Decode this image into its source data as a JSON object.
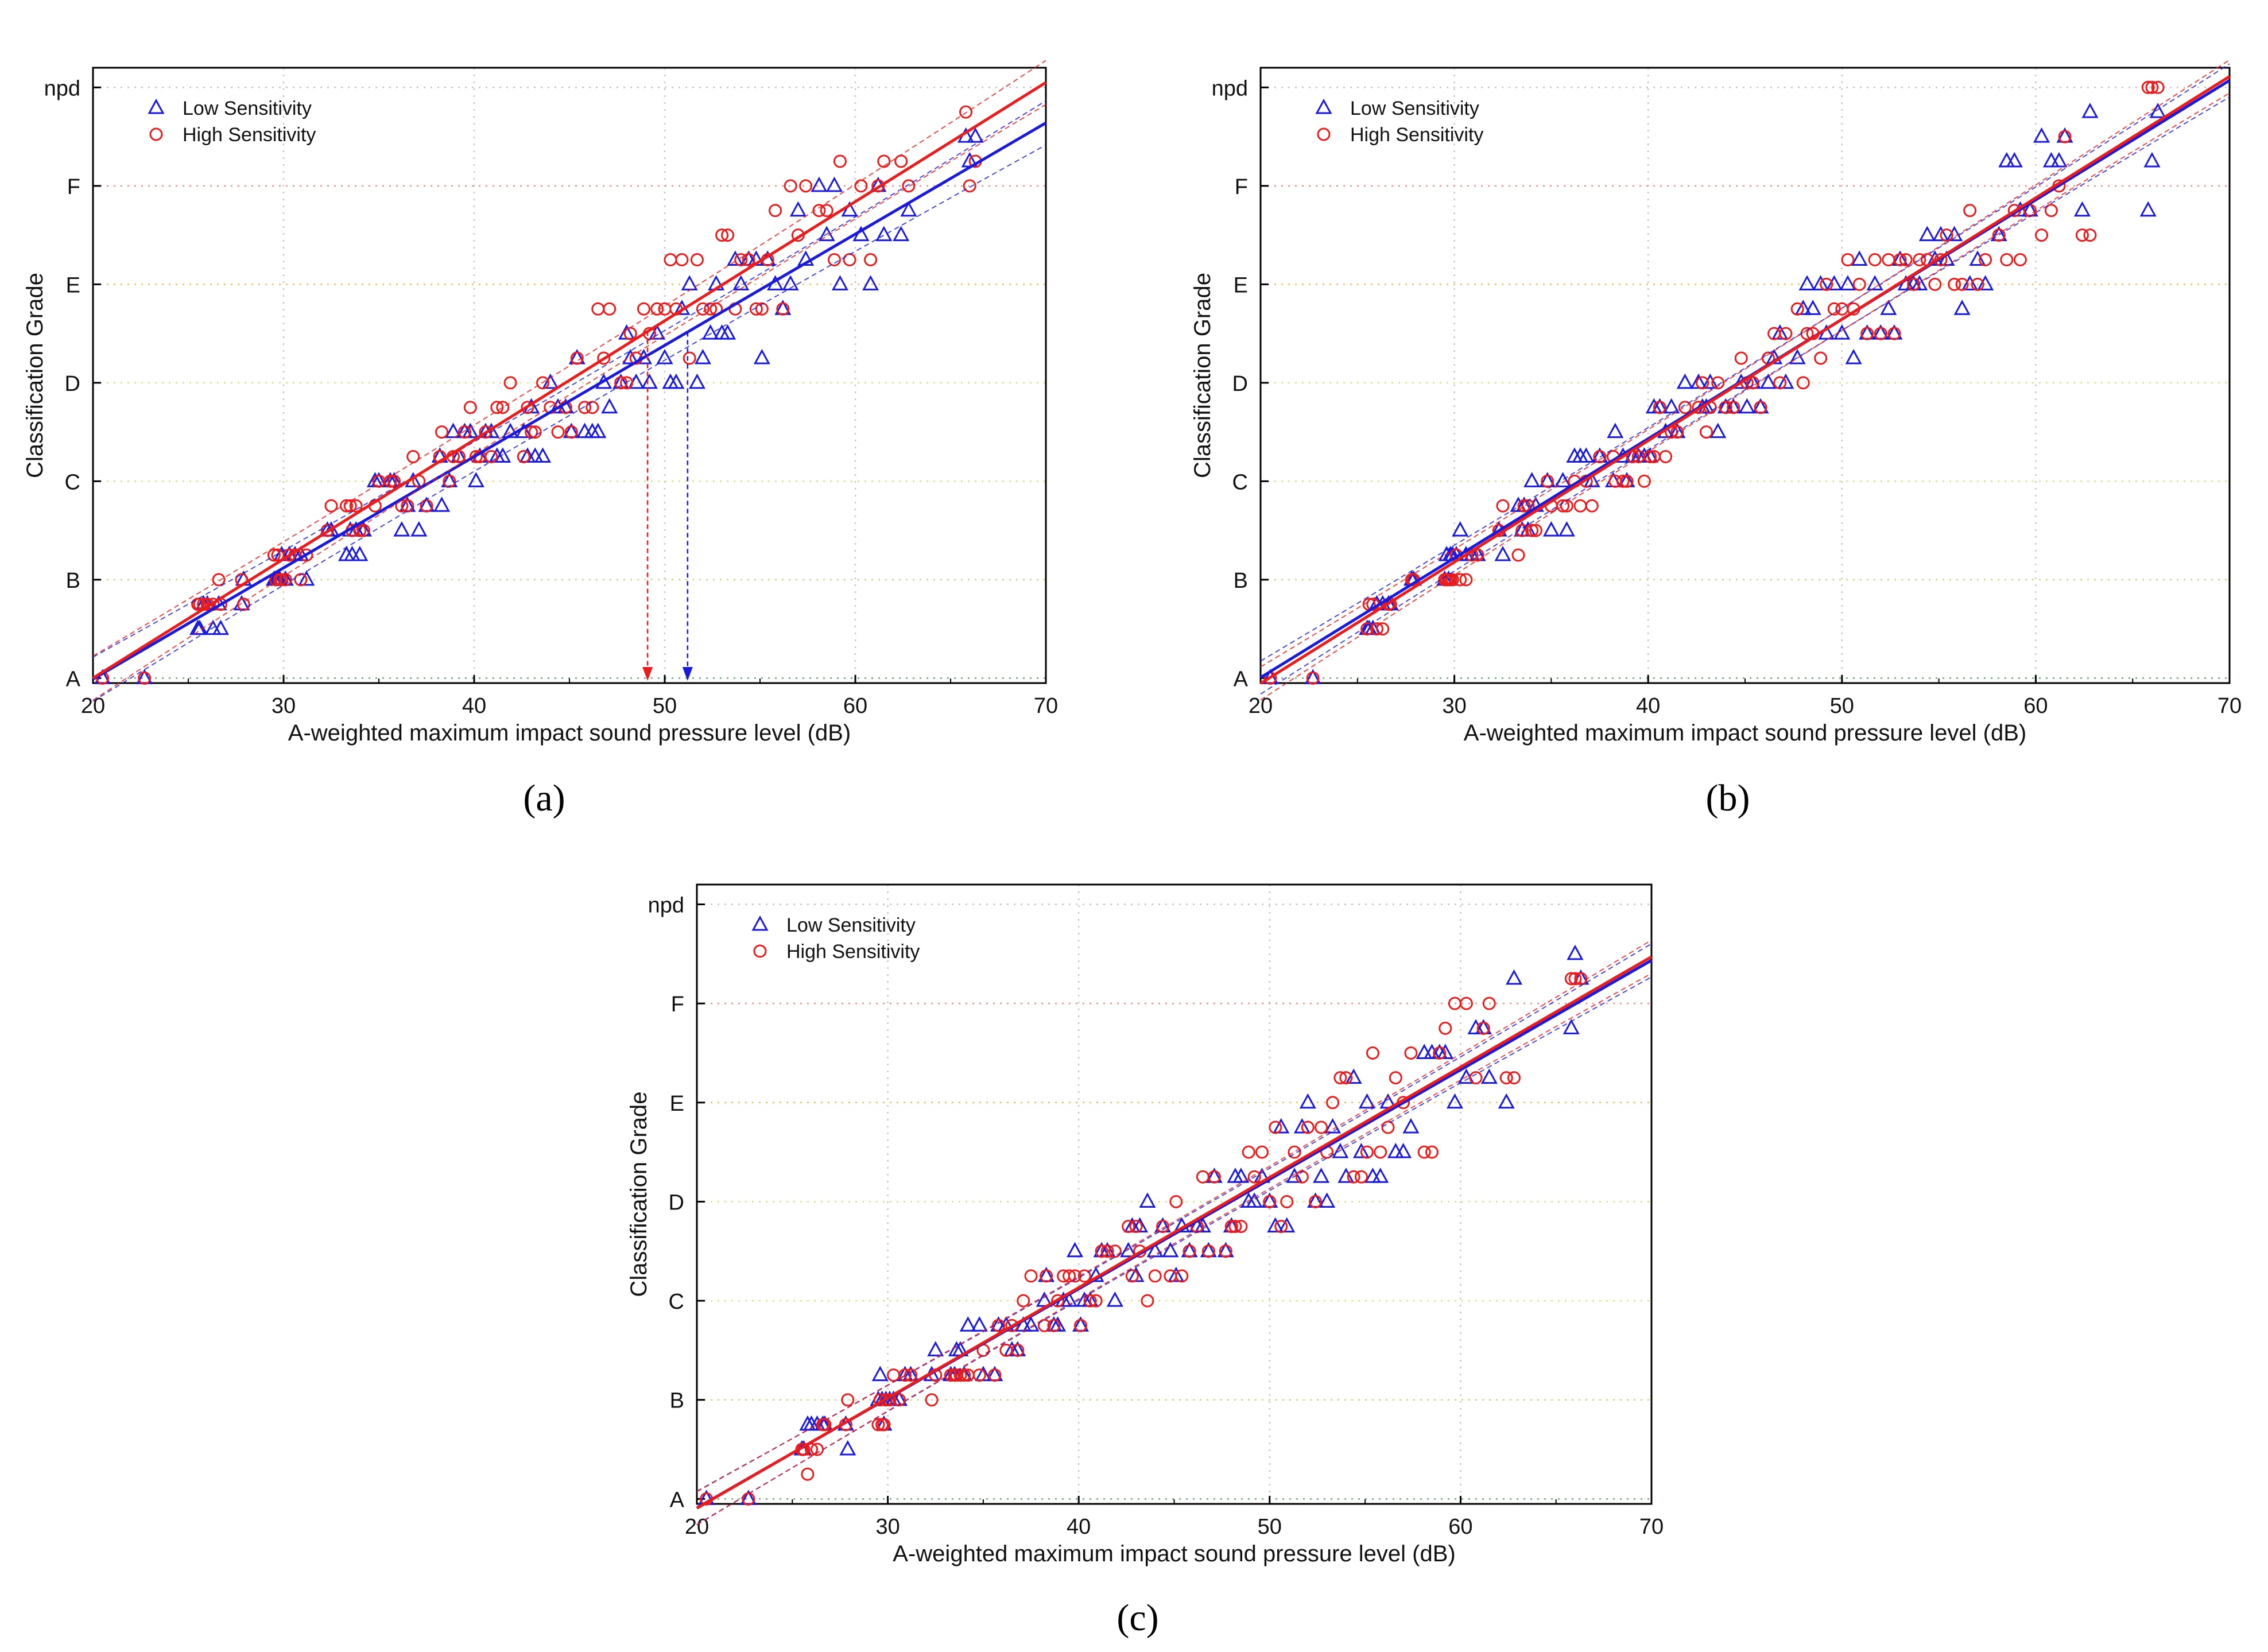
{
  "figure": {
    "panel_labels": [
      "(a)",
      "(b)",
      "(c)"
    ],
    "colors": {
      "low": "#1a1adc",
      "high": "#ea1c1c",
      "grid_npd": "#c6c6c6",
      "grid_F": "#ef8f8f",
      "grid_E": "#e6c35c",
      "grid_D": "#dede86",
      "grid_C": "#dede86",
      "grid_B": "#d2d286",
      "grid_A": "#6aa87a",
      "grid_vertical": "#c8c8c8",
      "ci_mid": "#9b3cc8"
    }
  },
  "chart_data": [
    {
      "id": "a",
      "type": "scatter",
      "title": "(a)",
      "xlabel": "A-weighted maximum impact sound pressure level (dB)",
      "ylabel": "Classification Grade",
      "xlim": [
        20,
        70
      ],
      "ylim": [
        -0.05,
        6.2
      ],
      "x_ticks": [
        20,
        30,
        40,
        50,
        60,
        70
      ],
      "y_ticks": [
        {
          "value": 0,
          "label": "A"
        },
        {
          "value": 1,
          "label": "B"
        },
        {
          "value": 2,
          "label": "C"
        },
        {
          "value": 3,
          "label": "D"
        },
        {
          "value": 4,
          "label": "E"
        },
        {
          "value": 5,
          "label": "F"
        },
        {
          "value": 6,
          "label": "npd"
        }
      ],
      "legend": {
        "position": "top-left",
        "entries": [
          "Low Sensitivity",
          "High Sensitivity"
        ]
      },
      "grid": true,
      "series": [
        {
          "name": "Low Sensitivity",
          "marker": "triangle",
          "seed": 11,
          "fit": {
            "slope": 0.113,
            "intercept": -2.27
          },
          "ci_offset": 0.16
        },
        {
          "name": "High Sensitivity",
          "marker": "circle",
          "seed": 23,
          "fit": {
            "slope": 0.121,
            "intercept": -2.42
          },
          "ci_offset": 0.16
        }
      ],
      "markers": [
        {
          "x": 49.1,
          "series": "High Sensitivity"
        },
        {
          "x": 51.2,
          "series": "Low Sensitivity"
        }
      ]
    },
    {
      "id": "b",
      "type": "scatter",
      "title": "(b)",
      "xlabel": "A-weighted maximum impact sound pressure level (dB)",
      "ylabel": "Classification Grade",
      "xlim": [
        20,
        70
      ],
      "ylim": [
        -0.05,
        6.2
      ],
      "x_ticks": [
        20,
        30,
        40,
        50,
        60,
        70
      ],
      "y_ticks": [
        {
          "value": 0,
          "label": "A"
        },
        {
          "value": 1,
          "label": "B"
        },
        {
          "value": 2,
          "label": "C"
        },
        {
          "value": 3,
          "label": "D"
        },
        {
          "value": 4,
          "label": "E"
        },
        {
          "value": 5,
          "label": "F"
        },
        {
          "value": 6,
          "label": "npd"
        }
      ],
      "legend": {
        "position": "top-left",
        "entries": [
          "Low Sensitivity",
          "High Sensitivity"
        ]
      },
      "grid": true,
      "series": [
        {
          "name": "Low Sensitivity",
          "marker": "triangle",
          "seed": 37,
          "fit": {
            "slope": 0.1213,
            "intercept": -2.42
          },
          "ci_offset": 0.12
        },
        {
          "name": "High Sensitivity",
          "marker": "circle",
          "seed": 53,
          "fit": {
            "slope": 0.1233,
            "intercept": -2.52
          },
          "ci_offset": 0.12
        }
      ],
      "markers": []
    },
    {
      "id": "c",
      "type": "scatter",
      "title": "(c)",
      "xlabel": "A-weighted maximum impact sound pressure level (dB)",
      "ylabel": "Classification Grade",
      "xlim": [
        20,
        70
      ],
      "ylim": [
        -0.05,
        6.2
      ],
      "x_ticks": [
        20,
        30,
        40,
        50,
        60,
        70
      ],
      "y_ticks": [
        {
          "value": 0,
          "label": "A"
        },
        {
          "value": 1,
          "label": "B"
        },
        {
          "value": 2,
          "label": "C"
        },
        {
          "value": 3,
          "label": "D"
        },
        {
          "value": 4,
          "label": "E"
        },
        {
          "value": 5,
          "label": "F"
        },
        {
          "value": 6,
          "label": "npd"
        }
      ],
      "legend": {
        "position": "top-left",
        "entries": [
          "Low Sensitivity",
          "High Sensitivity"
        ]
      },
      "grid": true,
      "series": [
        {
          "name": "Low Sensitivity",
          "marker": "triangle",
          "seed": 71,
          "fit": {
            "slope": 0.1105,
            "intercept": -2.3
          },
          "ci_offset": 0.12
        },
        {
          "name": "High Sensitivity",
          "marker": "circle",
          "seed": 97,
          "fit": {
            "slope": 0.1113,
            "intercept": -2.32
          },
          "ci_offset": 0.12
        }
      ],
      "markers": []
    }
  ],
  "shared_x": [
    20.5,
    22.7,
    25.5,
    25.6,
    25.8,
    26.0,
    26.3,
    26.6,
    26.7,
    27.8,
    27.9,
    29.5,
    29.6,
    29.7,
    29.8,
    29.9,
    30.1,
    30.3,
    30.6,
    30.9,
    31.2,
    32.3,
    32.5,
    33.3,
    33.5,
    33.6,
    33.8,
    34.0,
    34.2,
    34.8,
    35.0,
    35.6,
    35.8,
    36.2,
    36.5,
    36.8,
    37.1,
    37.5,
    38.2,
    38.3,
    38.7,
    38.9,
    39.2,
    39.5,
    39.8,
    40.1,
    40.3,
    40.6,
    40.9,
    41.2,
    41.5,
    41.9,
    42.6,
    42.8,
    43.0,
    43.2,
    43.6,
    44.0,
    44.4,
    44.8,
    45.1,
    45.4,
    45.8,
    46.2,
    46.5,
    46.8,
    47.1,
    47.7,
    48.0,
    48.2,
    48.5,
    48.9,
    49.2,
    49.6,
    50.0,
    50.3,
    50.6,
    50.9,
    51.3,
    51.7,
    52.0,
    52.4,
    52.7,
    53.0,
    53.3,
    53.7,
    54.0,
    54.4,
    54.8,
    55.1,
    55.4,
    55.8,
    56.2,
    56.6,
    57.0,
    57.4,
    58.1,
    58.5,
    58.9,
    59.2,
    59.7,
    60.3,
    60.8,
    61.2,
    61.5,
    62.4,
    62.8,
    65.8,
    66.0,
    66.3
  ]
}
